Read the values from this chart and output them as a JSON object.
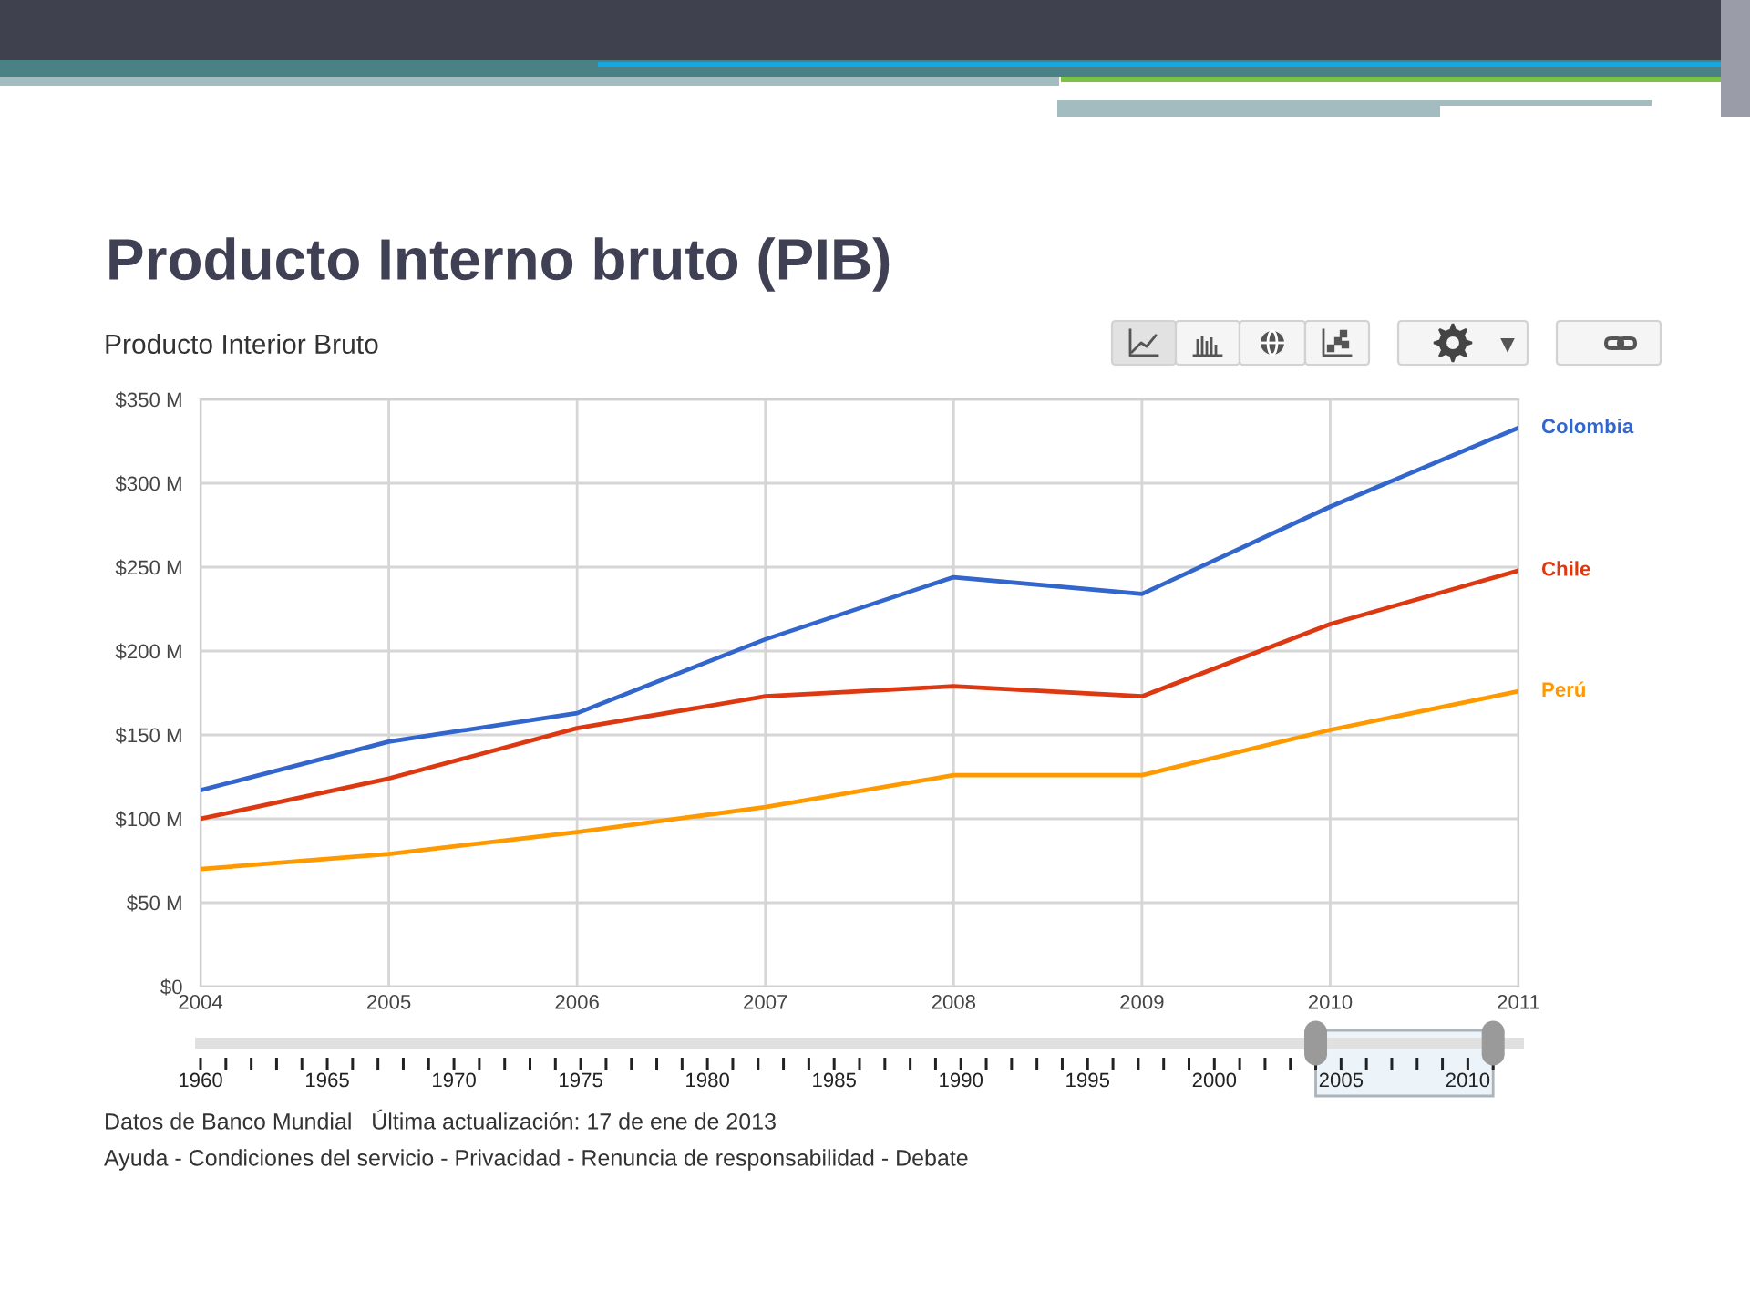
{
  "chart_data": {
    "type": "line",
    "title": "Producto Interno bruto (PIB)",
    "subtitle": "Producto Interior Bruto",
    "x": [
      2004,
      2005,
      2006,
      2007,
      2008,
      2009,
      2010,
      2011
    ],
    "xlim": [
      2004,
      2011
    ],
    "xticks": [
      2004,
      2005,
      2006,
      2007,
      2008,
      2009,
      2010,
      2011
    ],
    "ylim": [
      0,
      350
    ],
    "yticks": [
      {
        "value": 0,
        "label": "$0"
      },
      {
        "value": 50,
        "label": "$50 M"
      },
      {
        "value": 100,
        "label": "$100 M"
      },
      {
        "value": 150,
        "label": "$150 M"
      },
      {
        "value": 200,
        "label": "$200 M"
      },
      {
        "value": 250,
        "label": "$250 M"
      },
      {
        "value": 300,
        "label": "$300 M"
      },
      {
        "value": 350,
        "label": "$350 M"
      }
    ],
    "grid": true,
    "x2lim": [
      1960,
      2012
    ],
    "x2ticks": [
      1960,
      1965,
      1970,
      1975,
      1980,
      1985,
      1990,
      1995,
      2000,
      2005,
      2010
    ],
    "series": [
      {
        "name": "Colombia",
        "color": "#3366cc",
        "values": [
          117,
          146,
          163,
          207,
          244,
          234,
          286,
          333
        ]
      },
      {
        "name": "Chile",
        "color": "#dc3912",
        "values": [
          100,
          124,
          154,
          173,
          179,
          173,
          216,
          248
        ]
      },
      {
        "name": "Perú",
        "color": "#ff9900",
        "values": [
          70,
          79,
          92,
          107,
          126,
          126,
          153,
          176
        ]
      }
    ],
    "annotations": [
      "Datos de Banco Mundial   Última actualización: 17 de ene de 2013",
      "Ayuda - Condiciones del servicio - Privacidad - Renuncia de responsabilidad - Debate"
    ]
  }
}
